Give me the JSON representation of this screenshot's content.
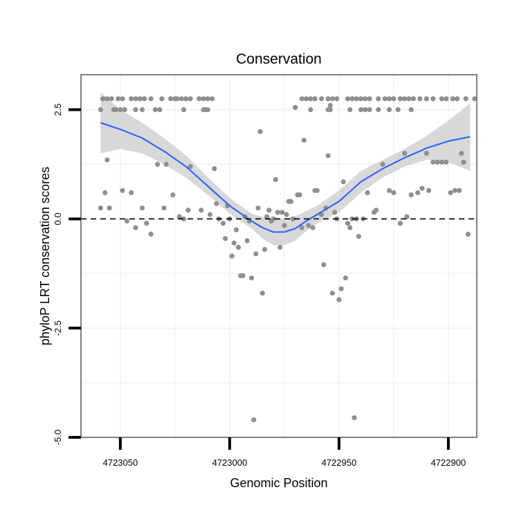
{
  "chart_data": {
    "type": "scatter",
    "title": "Conservation",
    "xlabel": "Genomic Position",
    "ylabel": "phyloP LRT conservation scores",
    "x_reversed": true,
    "xlim": [
      4723068,
      4722887
    ],
    "ylim": [
      -5.0,
      3.3
    ],
    "x_ticks": [
      4723050,
      4723000,
      4722950,
      4722900
    ],
    "x_tick_labels": [
      "4723050",
      "4723000",
      "4722950",
      "4722900"
    ],
    "y_ticks": [
      -5.0,
      -2.5,
      0.0,
      2.5
    ],
    "y_tick_labels": [
      "-5.0",
      "-2.5",
      "0.0",
      "2.5"
    ],
    "reference_line_y": 0,
    "colors": {
      "points": "#8f8f8f",
      "smooth": "#3366ff",
      "band": "#d6d6d6",
      "panel_border": "#7f7f7f",
      "grid": "#f2f2f2"
    },
    "series": [
      {
        "name": "scores",
        "points": [
          [
            4723058,
            2.75
          ],
          [
            4723056,
            2.75
          ],
          [
            4723054,
            2.75
          ],
          [
            4723051,
            2.75
          ],
          [
            4723049,
            2.75
          ],
          [
            4723045,
            2.75
          ],
          [
            4723043,
            2.75
          ],
          [
            4723041,
            2.75
          ],
          [
            4723039,
            2.75
          ],
          [
            4723036,
            2.75
          ],
          [
            4723031,
            2.75
          ],
          [
            4723027,
            2.75
          ],
          [
            4723025,
            2.75
          ],
          [
            4723024,
            2.75
          ],
          [
            4723022,
            2.75
          ],
          [
            4723020,
            2.75
          ],
          [
            4723018,
            2.75
          ],
          [
            4723014,
            2.75
          ],
          [
            4723012,
            2.75
          ],
          [
            4723010,
            2.75
          ],
          [
            4723008,
            2.75
          ],
          [
            4723059,
            2.5
          ],
          [
            4723053,
            2.5
          ],
          [
            4723052,
            2.5
          ],
          [
            4723050,
            2.5
          ],
          [
            4723048,
            2.5
          ],
          [
            4723043,
            2.5
          ],
          [
            4723040,
            2.5
          ],
          [
            4723034,
            2.5
          ],
          [
            4723032,
            2.5
          ],
          [
            4723021,
            2.5
          ],
          [
            4723012,
            2.5
          ],
          [
            4723011,
            2.5
          ],
          [
            4723010,
            2.5
          ],
          [
            4722967,
            2.75
          ],
          [
            4722965,
            2.75
          ],
          [
            4722963,
            2.75
          ],
          [
            4722961,
            2.75
          ],
          [
            4722958,
            2.75
          ],
          [
            4722955,
            2.75
          ],
          [
            4722953,
            2.75
          ],
          [
            4722951,
            2.75
          ],
          [
            4722946,
            2.75
          ],
          [
            4722944,
            2.75
          ],
          [
            4722942,
            2.75
          ],
          [
            4722940,
            2.75
          ],
          [
            4722938,
            2.75
          ],
          [
            4722936,
            2.75
          ],
          [
            4722932,
            2.75
          ],
          [
            4722929,
            2.75
          ],
          [
            4722927,
            2.75
          ],
          [
            4722925,
            2.75
          ],
          [
            4722922,
            2.75
          ],
          [
            4722920,
            2.75
          ],
          [
            4722918,
            2.75
          ],
          [
            4722916,
            2.75
          ],
          [
            4722913,
            2.75
          ],
          [
            4722910,
            2.75
          ],
          [
            4722907,
            2.75
          ],
          [
            4722903,
            2.75
          ],
          [
            4722901,
            2.75
          ],
          [
            4722898,
            2.75
          ],
          [
            4722896,
            2.75
          ],
          [
            4722892,
            2.75
          ],
          [
            4722888,
            2.75
          ],
          [
            4722963,
            2.5
          ],
          [
            4722955,
            2.5
          ],
          [
            4722954,
            2.5
          ],
          [
            4722945,
            2.5
          ],
          [
            4722940,
            2.5
          ],
          [
            4722938,
            2.5
          ],
          [
            4722936,
            2.5
          ],
          [
            4722932,
            2.5
          ],
          [
            4722927,
            2.5
          ],
          [
            4722923,
            2.5
          ],
          [
            4722917,
            2.5
          ],
          [
            4723056,
            1.35
          ],
          [
            4723057,
            0.6
          ],
          [
            4723059,
            0.25
          ],
          [
            4723055,
            0.25
          ],
          [
            4723049,
            0.65
          ],
          [
            4723047,
            -0.05
          ],
          [
            4723045,
            0.6
          ],
          [
            4723043,
            -0.2
          ],
          [
            4723040,
            0.25
          ],
          [
            4723038,
            -0.1
          ],
          [
            4723036,
            -0.35
          ],
          [
            4723033,
            1.25
          ],
          [
            4723030,
            0.25
          ],
          [
            4723029,
            1.25
          ],
          [
            4723026,
            0.55
          ],
          [
            4723023,
            0.05
          ],
          [
            4723021,
            0.0
          ],
          [
            4723019,
            0.2
          ],
          [
            4723018,
            1.2
          ],
          [
            4723013,
            0.2
          ],
          [
            4723009,
            0.1
          ],
          [
            4723007,
            1.15
          ],
          [
            4723006,
            0.35
          ],
          [
            4723005,
            0.0
          ],
          [
            4723003,
            -0.1
          ],
          [
            4723002,
            -0.45
          ],
          [
            4723001,
            0.3
          ],
          [
            4723000,
            0.0
          ],
          [
            4722999,
            -0.85
          ],
          [
            4722998,
            -0.55
          ],
          [
            4722997,
            -0.25
          ],
          [
            4722996,
            -0.65
          ],
          [
            4722995,
            -1.3
          ],
          [
            4722994,
            -1.3
          ],
          [
            4722993,
            0.05
          ],
          [
            4722992,
            -0.5
          ],
          [
            4722991,
            -0.05
          ],
          [
            4722990,
            -1.35
          ],
          [
            4722989,
            -4.6
          ],
          [
            4722988,
            -0.8
          ],
          [
            4722987,
            0.25
          ],
          [
            4722986,
            2.0
          ],
          [
            4722985,
            -1.7
          ],
          [
            4722984,
            -0.7
          ],
          [
            4722983,
            0.05
          ],
          [
            4722982,
            0.2
          ],
          [
            4722981,
            -0.05
          ],
          [
            4722980,
            0.0
          ],
          [
            4722979,
            0.9
          ],
          [
            4722978,
            0.15
          ],
          [
            4722977,
            -0.65
          ],
          [
            4722976,
            0.15
          ],
          [
            4722975,
            -0.15
          ],
          [
            4722974,
            0.1
          ],
          [
            4722973,
            0.4
          ],
          [
            4722972,
            0.4
          ],
          [
            4722971,
            0.0
          ],
          [
            4722970,
            2.55
          ],
          [
            4722969,
            0.55
          ],
          [
            4722968,
            0.55
          ],
          [
            4722967,
            -0.2
          ],
          [
            4722966,
            1.8
          ],
          [
            4722964,
            -0.15
          ],
          [
            4722962,
            -0.2
          ],
          [
            4722961,
            0.65
          ],
          [
            4722960,
            0.65
          ],
          [
            4722958,
            0.1
          ],
          [
            4722957,
            -1.05
          ],
          [
            4722956,
            0.25
          ],
          [
            4722955,
            1.45
          ],
          [
            4722954,
            2.6
          ],
          [
            4722953,
            -1.7
          ],
          [
            4722952,
            0.15
          ],
          [
            4722951,
            0.0
          ],
          [
            4722950,
            -1.85
          ],
          [
            4722949,
            -1.6
          ],
          [
            4722948,
            0.85
          ],
          [
            4722947,
            -1.35
          ],
          [
            4722946,
            -0.1
          ],
          [
            4722945,
            -0.2
          ],
          [
            4722944,
            0.0
          ],
          [
            4722943,
            -4.55
          ],
          [
            4722942,
            0.0
          ],
          [
            4722941,
            -0.4
          ],
          [
            4722939,
            0.0
          ],
          [
            4722937,
            0.6
          ],
          [
            4722934,
            0.15
          ],
          [
            4722933,
            0.2
          ],
          [
            4722930,
            1.25
          ],
          [
            4722927,
            0.65
          ],
          [
            4722925,
            0.6
          ],
          [
            4722922,
            -0.1
          ],
          [
            4722920,
            1.5
          ],
          [
            4722919,
            0.05
          ],
          [
            4722917,
            0.55
          ],
          [
            4722914,
            0.6
          ],
          [
            4722912,
            0.7
          ],
          [
            4722910,
            1.5
          ],
          [
            4722909,
            0.65
          ],
          [
            4722907,
            1.3
          ],
          [
            4722905,
            1.3
          ],
          [
            4722903,
            1.3
          ],
          [
            4722901,
            1.3
          ],
          [
            4722899,
            0.6
          ],
          [
            4722897,
            0.65
          ],
          [
            4722895,
            0.65
          ],
          [
            4722894,
            1.5
          ],
          [
            4722893,
            1.3
          ],
          [
            4722891,
            -0.35
          ]
        ]
      }
    ],
    "smooth": {
      "x": [
        4723059,
        4723050,
        4723040,
        4723030,
        4723020,
        4723010,
        4723000,
        4722990,
        4722985,
        4722980,
        4722975,
        4722970,
        4722965,
        4722960,
        4722950,
        4722940,
        4722930,
        4722920,
        4722910,
        4722900,
        4722890
      ],
      "y": [
        2.2,
        2.05,
        1.85,
        1.55,
        1.2,
        0.75,
        0.3,
        -0.05,
        -0.2,
        -0.3,
        -0.3,
        -0.22,
        -0.05,
        0.1,
        0.4,
        0.85,
        1.15,
        1.4,
        1.62,
        1.78,
        1.88
      ],
      "lower": [
        1.5,
        1.6,
        1.5,
        1.25,
        0.95,
        0.55,
        0.12,
        -0.22,
        -0.45,
        -0.6,
        -0.6,
        -0.5,
        -0.28,
        -0.1,
        0.15,
        0.6,
        0.95,
        1.2,
        1.35,
        1.3,
        1.1
      ],
      "upper": [
        2.9,
        2.5,
        2.2,
        1.85,
        1.45,
        0.95,
        0.48,
        0.12,
        0.05,
        0.0,
        0.0,
        0.06,
        0.18,
        0.3,
        0.65,
        1.1,
        1.35,
        1.6,
        1.9,
        2.25,
        2.65
      ]
    }
  }
}
